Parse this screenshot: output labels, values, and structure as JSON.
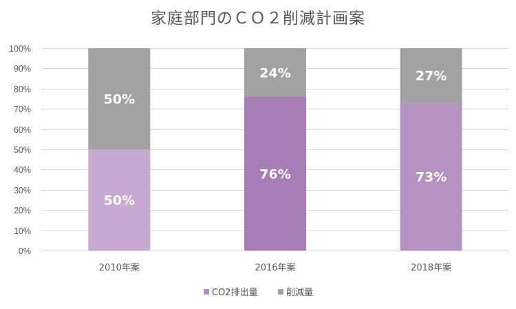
{
  "chart_data": {
    "type": "bar",
    "stacked": true,
    "percent_stacked": true,
    "title": "家庭部門のＣＯ２削減計画案",
    "categories": [
      "2010年案",
      "2016年案",
      "2018年案"
    ],
    "series": [
      {
        "name": "CO2排出量",
        "values": [
          50,
          76,
          73
        ],
        "labels": [
          "50%",
          "76%",
          "73%"
        ],
        "colors": [
          "#c7a9d2",
          "#a67db5",
          "#b591c1"
        ]
      },
      {
        "name": "削減量",
        "values": [
          50,
          24,
          27
        ],
        "labels": [
          "50%",
          "24%",
          "27%"
        ],
        "colors": [
          "#a2a2a2",
          "#a2a2a2",
          "#a2a2a2"
        ]
      }
    ],
    "yticks": [
      "0%",
      "10%",
      "20%",
      "30%",
      "40%",
      "50%",
      "60%",
      "70%",
      "80%",
      "90%",
      "100%"
    ],
    "ylim": [
      0,
      100
    ],
    "grid": true,
    "legend_position": "bottom",
    "legend_colors": [
      "#b591c1",
      "#a2a2a2"
    ]
  }
}
